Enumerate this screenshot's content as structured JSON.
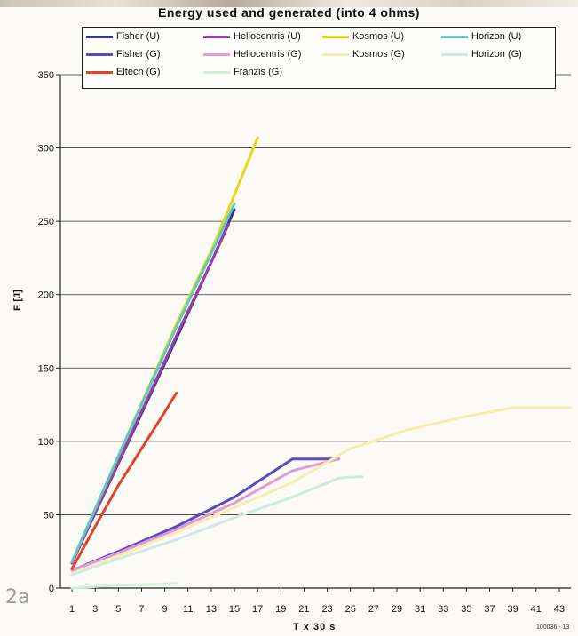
{
  "chart_data": {
    "type": "line",
    "title": "Energy used and generated (into 4 ohms)",
    "xlabel": "T x 30 s",
    "ylabel": "E [J]",
    "ylim": [
      0,
      350
    ],
    "xlim": [
      0,
      44
    ],
    "xticks": [
      1,
      3,
      5,
      7,
      9,
      11,
      13,
      15,
      17,
      19,
      21,
      23,
      25,
      27,
      29,
      31,
      33,
      35,
      37,
      39,
      41,
      43
    ],
    "yticks": [
      0,
      50,
      100,
      150,
      200,
      250,
      300,
      350
    ],
    "grid": "horizontal",
    "legend_position": "top",
    "series": [
      {
        "name": "Fisher (U)",
        "color": "#3a3a8c",
        "x": [
          1,
          5,
          10,
          13,
          15
        ],
        "y": [
          17,
          85,
          170,
          222,
          258
        ]
      },
      {
        "name": "Heliocentris (U)",
        "color": "#9c3fa0",
        "x": [
          1,
          5,
          10,
          13,
          14.5
        ],
        "y": [
          17,
          86,
          172,
          222,
          248
        ]
      },
      {
        "name": "Kosmos (U)",
        "color": "#e6d81c",
        "x": [
          1,
          5,
          10,
          13,
          15,
          17
        ],
        "y": [
          18,
          90,
          180,
          230,
          268,
          307
        ]
      },
      {
        "name": "Horizon (U)",
        "color": "#5fc8c4",
        "x": [
          1,
          5,
          10,
          13,
          15
        ],
        "y": [
          18,
          90,
          178,
          228,
          262
        ]
      },
      {
        "name": "Fisher (G)",
        "color": "#5a4bc0",
        "x": [
          1,
          5,
          10,
          15,
          20,
          24
        ],
        "y": [
          12,
          25,
          42,
          62,
          88,
          88
        ]
      },
      {
        "name": "Heliocentris (G)",
        "color": "#e19ad8",
        "x": [
          1,
          5,
          10,
          15,
          20,
          24
        ],
        "y": [
          12,
          24,
          40,
          58,
          80,
          88
        ]
      },
      {
        "name": "Kosmos (G)",
        "color": "#f7eeae",
        "x": [
          1,
          5,
          10,
          15,
          20,
          25,
          30,
          35,
          39,
          44
        ],
        "y": [
          10,
          22,
          38,
          55,
          72,
          95,
          108,
          117,
          123,
          123
        ]
      },
      {
        "name": "Horizon (G)",
        "color": "#d2e8e6",
        "x": [
          1,
          5,
          10,
          15,
          20,
          24,
          26
        ],
        "y": [
          9,
          20,
          33,
          48,
          62,
          75,
          76
        ]
      },
      {
        "name": "Eltech (G)",
        "color": "#e0432a",
        "x": [
          1,
          3,
          5,
          7,
          9,
          10
        ],
        "y": [
          13,
          42,
          70,
          95,
          120,
          133
        ]
      },
      {
        "name": "Franzis (G)",
        "color": "#d6ecd8",
        "x": [
          1,
          5,
          10
        ],
        "y": [
          0,
          2,
          3
        ]
      }
    ]
  },
  "figure_label": "2a",
  "figure_code": "100036 - 13"
}
